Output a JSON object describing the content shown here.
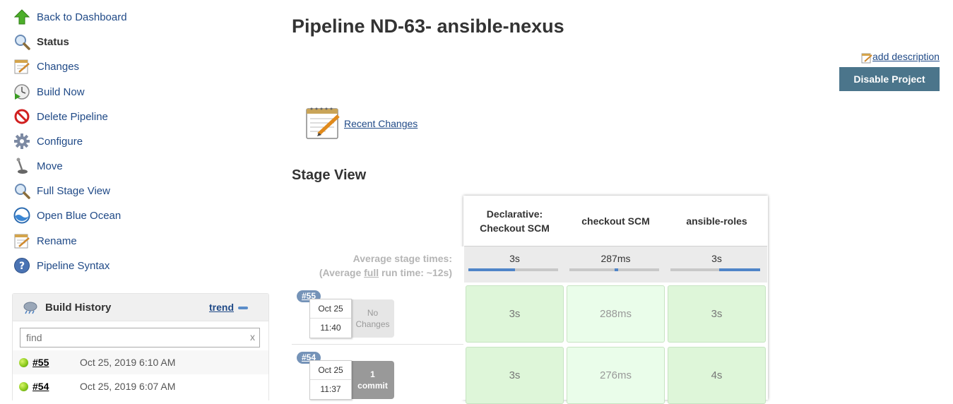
{
  "sidebar": {
    "items": [
      {
        "label": "Back to Dashboard",
        "icon": "arrow-up-icon"
      },
      {
        "label": "Status",
        "icon": "magnifier-icon"
      },
      {
        "label": "Changes",
        "icon": "notepad-icon"
      },
      {
        "label": "Build Now",
        "icon": "clock-play-icon"
      },
      {
        "label": "Delete Pipeline",
        "icon": "no-entry-icon"
      },
      {
        "label": "Configure",
        "icon": "gear-icon"
      },
      {
        "label": "Move",
        "icon": "joystick-icon"
      },
      {
        "label": "Full Stage View",
        "icon": "magnifier-icon"
      },
      {
        "label": "Open Blue Ocean",
        "icon": "blue-ocean-icon"
      },
      {
        "label": "Rename",
        "icon": "notepad-icon"
      },
      {
        "label": "Pipeline Syntax",
        "icon": "help-icon"
      }
    ]
  },
  "build_history": {
    "title": "Build History",
    "trend_label": "trend",
    "search_placeholder": "find",
    "clear_label": "x",
    "builds": [
      {
        "number": "#55",
        "date": "Oct 25, 2019 6:10 AM",
        "status_color": "#8ccb1d"
      },
      {
        "number": "#54",
        "date": "Oct 25, 2019 6:07 AM",
        "status_color": "#8ccb1d"
      }
    ]
  },
  "main": {
    "title": "Pipeline ND-63- ansible-nexus",
    "add_description": "add description",
    "disable_button": "Disable Project",
    "recent_changes": "Recent Changes",
    "stage_view_heading": "Stage View"
  },
  "stage_view": {
    "avg_stage_label": "Average stage times:",
    "avg_run_prefix": "(Average ",
    "avg_run_full": "full",
    "avg_run_suffix": " run time: ~12s)",
    "stages": [
      {
        "name_line1": "Declarative:",
        "name_line2": "Checkout SCM",
        "avg": "3s",
        "avg_fraction": 0.52
      },
      {
        "name_line1": "checkout SCM",
        "name_line2": "",
        "avg": "287ms",
        "avg_fraction": 0.04
      },
      {
        "name_line1": "ansible-roles",
        "name_line2": "",
        "avg": "3s",
        "avg_fraction": 0.46
      }
    ],
    "runs": [
      {
        "number": "#55",
        "date": "Oct 25",
        "time": "11:40",
        "changes_line1": "No",
        "changes_line2": "Changes",
        "has_changes": false,
        "durations": [
          "3s",
          "288ms",
          "3s"
        ]
      },
      {
        "number": "#54",
        "date": "Oct 25",
        "time": "11:37",
        "changes_line1": "1",
        "changes_line2": "commit",
        "has_changes": true,
        "durations": [
          "3s",
          "276ms",
          "4s"
        ]
      }
    ]
  },
  "colors": {
    "link": "#204a87",
    "button": "#4b758b",
    "success_cell": "#def6d9",
    "success_cell_light": "#eafdea",
    "badge": "#7593b8"
  }
}
